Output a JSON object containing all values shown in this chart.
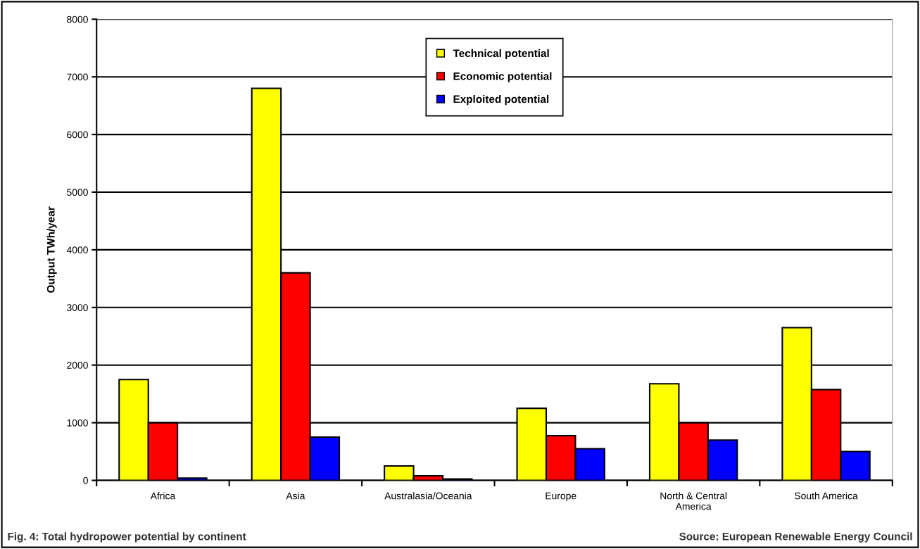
{
  "chart_data": {
    "type": "bar",
    "title": "Fig. 4: Total hydropower potential by continent",
    "ylabel": "Output TWh/year",
    "categories": [
      "Africa",
      "Asia",
      "Australasia/Oceania",
      "Europe",
      "North & Central\nAmerica",
      "South America"
    ],
    "series": [
      {
        "name": "Technical potential",
        "color": "#ffff00",
        "values": [
          1750,
          6800,
          250,
          1250,
          1675,
          2650
        ]
      },
      {
        "name": "Economic potential",
        "color": "#ff0000",
        "values": [
          1000,
          3600,
          80,
          775,
          1000,
          1575
        ]
      },
      {
        "name": "Exploited potential",
        "color": "#0000ff",
        "values": [
          40,
          750,
          25,
          550,
          700,
          500
        ]
      }
    ],
    "ylim": [
      0,
      8000
    ],
    "yticks": [
      0,
      1000,
      2000,
      3000,
      4000,
      5000,
      6000,
      7000,
      8000
    ],
    "grid": "y",
    "legend": "top",
    "annotations": [
      "Source: European Renewable Energy Council"
    ]
  }
}
